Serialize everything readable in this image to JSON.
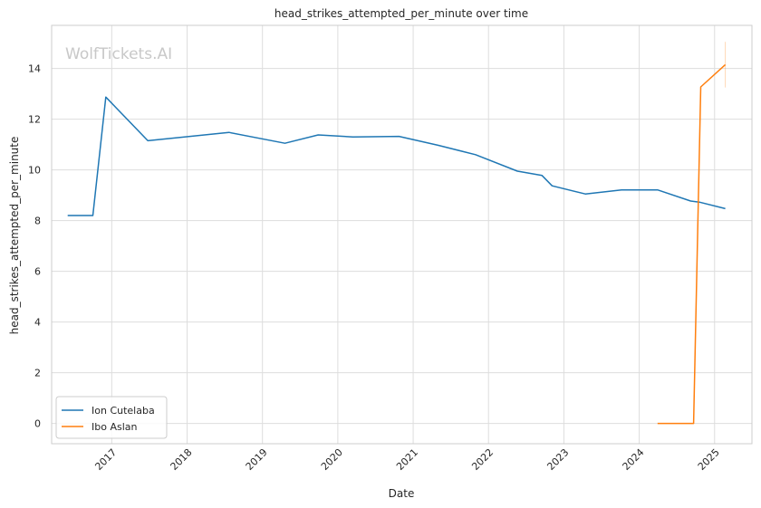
{
  "chart_data": {
    "type": "line",
    "title": "head_strikes_attempted_per_minute over time",
    "xlabel": "Date",
    "ylabel": "head_strikes_attempted_per_minute",
    "watermark": "WolfTickets.AI",
    "x_ticks": [
      "2017",
      "2018",
      "2019",
      "2020",
      "2021",
      "2022",
      "2023",
      "2024",
      "2025"
    ],
    "y_ticks": [
      0,
      2,
      4,
      6,
      8,
      10,
      12,
      14
    ],
    "ylim": [
      -0.8,
      15.7
    ],
    "xlim": [
      "2016-03-15",
      "2025-07-01"
    ],
    "grid": true,
    "legend_position": "lower-left",
    "series": [
      {
        "name": "Ion Cutelaba",
        "color": "#1f77b4",
        "points": [
          {
            "x": "2016-06-01",
            "y": 8.2
          },
          {
            "x": "2016-10-01",
            "y": 8.2
          },
          {
            "x": "2016-12-03",
            "y": 12.87
          },
          {
            "x": "2017-06-25",
            "y": 11.15
          },
          {
            "x": "2018-07-22",
            "y": 11.48
          },
          {
            "x": "2019-04-20",
            "y": 11.05
          },
          {
            "x": "2019-09-28",
            "y": 11.38
          },
          {
            "x": "2020-03-14",
            "y": 11.3
          },
          {
            "x": "2020-10-24",
            "y": 11.32
          },
          {
            "x": "2021-05-01",
            "y": 10.97
          },
          {
            "x": "2021-10-30",
            "y": 10.6
          },
          {
            "x": "2022-05-21",
            "y": 9.95
          },
          {
            "x": "2022-09-17",
            "y": 9.78
          },
          {
            "x": "2022-11-05",
            "y": 9.37
          },
          {
            "x": "2023-04-15",
            "y": 9.05
          },
          {
            "x": "2023-10-07",
            "y": 9.21
          },
          {
            "x": "2024-03-30",
            "y": 9.21
          },
          {
            "x": "2024-09-07",
            "y": 8.77
          },
          {
            "x": "2024-10-19",
            "y": 8.73
          },
          {
            "x": "2025-02-22",
            "y": 8.47
          }
        ]
      },
      {
        "name": "Ibo Aslan",
        "color": "#ff7f0e",
        "points": [
          {
            "x": "2024-03-30",
            "y": 0.0
          },
          {
            "x": "2024-09-21",
            "y": 0.0
          },
          {
            "x": "2024-10-26",
            "y": 13.27
          },
          {
            "x": "2025-02-22",
            "y": 14.15
          }
        ],
        "error_band": {
          "x": "2025-02-22",
          "low": 13.25,
          "high": 15.05
        }
      }
    ]
  }
}
